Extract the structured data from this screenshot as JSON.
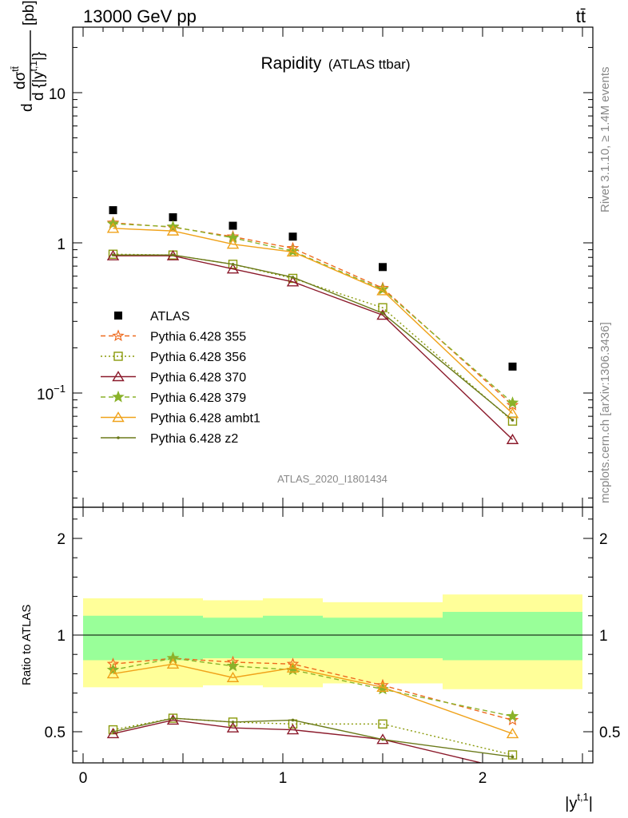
{
  "header": {
    "energy_label": "13000 GeV pp",
    "process_label": "tt̄",
    "title_main": "Rapidity",
    "title_sub": "(ATLAS ttbar)",
    "analysis_id": "ATLAS_2020_I1801434",
    "rivet_label": "Rivet 3.1.10, ≥ 1.4M events",
    "mcplots_label": "mcplots.cern.ch [arXiv:1306.3436]"
  },
  "upper_axis": {
    "ylabel_num": "dσ",
    "ylabel_num_sup": "tt̄",
    "ylabel_den": "d {|y",
    "ylabel_den_sup": "t,1",
    "ylabel_den_end": "|}",
    "ylabel_unit": "[pb]",
    "tick_10": "10",
    "tick_1": "1",
    "tick_01_base": "10",
    "tick_01_exp": "−1"
  },
  "lower_axis": {
    "ylabel": "Ratio to ATLAS",
    "tick_2": "2",
    "tick_1": "1",
    "tick_05": "0.5",
    "xtick_0": "0",
    "xtick_1": "1",
    "xtick_2": "2",
    "xlabel": "|y",
    "xlabel_sup": "t,1",
    "xlabel_end": "|"
  },
  "chart_data": [
    {
      "type": "scatter",
      "panel": "main",
      "x_edges": [
        0,
        0.3,
        0.6,
        0.9,
        1.2,
        1.8,
        2.5
      ],
      "x_centers": [
        0.15,
        0.45,
        0.75,
        1.05,
        1.5,
        2.15
      ],
      "xlim": [
        -0.08,
        2.55
      ],
      "ylim": [
        0.022,
        28
      ],
      "log_y": true,
      "legend_position": "middle-left",
      "series": [
        {
          "name": "ATLAS",
          "color": "#000000",
          "style": "data",
          "values": [
            1.65,
            1.48,
            1.3,
            1.1,
            0.69,
            0.15
          ]
        },
        {
          "name": "Pythia 6.428 355",
          "color": "#ee6a1e",
          "style": "dashed",
          "marker": "star-open",
          "values": [
            1.36,
            1.27,
            1.1,
            0.92,
            0.5,
            0.083
          ]
        },
        {
          "name": "Pythia 6.428 356",
          "color": "#8a9a0a",
          "style": "dotted",
          "marker": "square-open",
          "values": [
            0.84,
            0.83,
            0.72,
            0.58,
            0.37,
            0.065
          ]
        },
        {
          "name": "Pythia 6.428 370",
          "color": "#8b1a2b",
          "style": "solid",
          "marker": "triangle-open",
          "values": [
            0.82,
            0.82,
            0.67,
            0.55,
            0.33,
            0.049
          ]
        },
        {
          "name": "Pythia 6.428 379",
          "color": "#8ab22a",
          "style": "dashed",
          "marker": "star-filled",
          "values": [
            1.34,
            1.28,
            1.08,
            0.88,
            0.49,
            0.086
          ]
        },
        {
          "name": "Pythia 6.428 ambt1",
          "color": "#f0a21a",
          "style": "solid",
          "marker": "triangle-open",
          "values": [
            1.25,
            1.2,
            0.98,
            0.87,
            0.48,
            0.073
          ]
        },
        {
          "name": "Pythia 6.428 z2",
          "color": "#6b7a1a",
          "style": "solid",
          "marker": "dot",
          "values": [
            0.83,
            0.83,
            0.72,
            0.59,
            0.34,
            0.066
          ]
        }
      ]
    },
    {
      "type": "line",
      "panel": "ratio",
      "ylabel": "Ratio to ATLAS",
      "ylim": [
        0.35,
        2.25
      ],
      "uncertainty_bands": {
        "x_edges": [
          0,
          0.6,
          0.9,
          1.2,
          1.8,
          2.5
        ],
        "inner_low": [
          0.87,
          0.88,
          0.88,
          0.88,
          0.87
        ],
        "inner_high": [
          1.1,
          1.09,
          1.1,
          1.09,
          1.12
        ],
        "outer_low": [
          0.73,
          0.74,
          0.73,
          0.75,
          0.72
        ],
        "outer_high": [
          1.19,
          1.18,
          1.19,
          1.17,
          1.21
        ],
        "inner_color": "#99ff99",
        "outer_color": "#ffff99"
      },
      "series": [
        {
          "name": "Pythia 6.428 355",
          "values": [
            0.85,
            0.88,
            0.86,
            0.85,
            0.74,
            0.56
          ]
        },
        {
          "name": "Pythia 6.428 356",
          "values": [
            0.51,
            0.57,
            0.55,
            0.54,
            0.54,
            0.38
          ]
        },
        {
          "name": "Pythia 6.428 370",
          "values": [
            0.49,
            0.56,
            0.52,
            0.51,
            0.46,
            0.3
          ]
        },
        {
          "name": "Pythia 6.428 379",
          "values": [
            0.82,
            0.88,
            0.84,
            0.82,
            0.72,
            0.58
          ]
        },
        {
          "name": "Pythia 6.428 ambt1",
          "values": [
            0.8,
            0.85,
            0.78,
            0.83,
            0.73,
            0.49
          ]
        },
        {
          "name": "Pythia 6.428 z2",
          "values": [
            0.5,
            0.57,
            0.55,
            0.56,
            0.46,
            0.37
          ]
        }
      ]
    }
  ]
}
